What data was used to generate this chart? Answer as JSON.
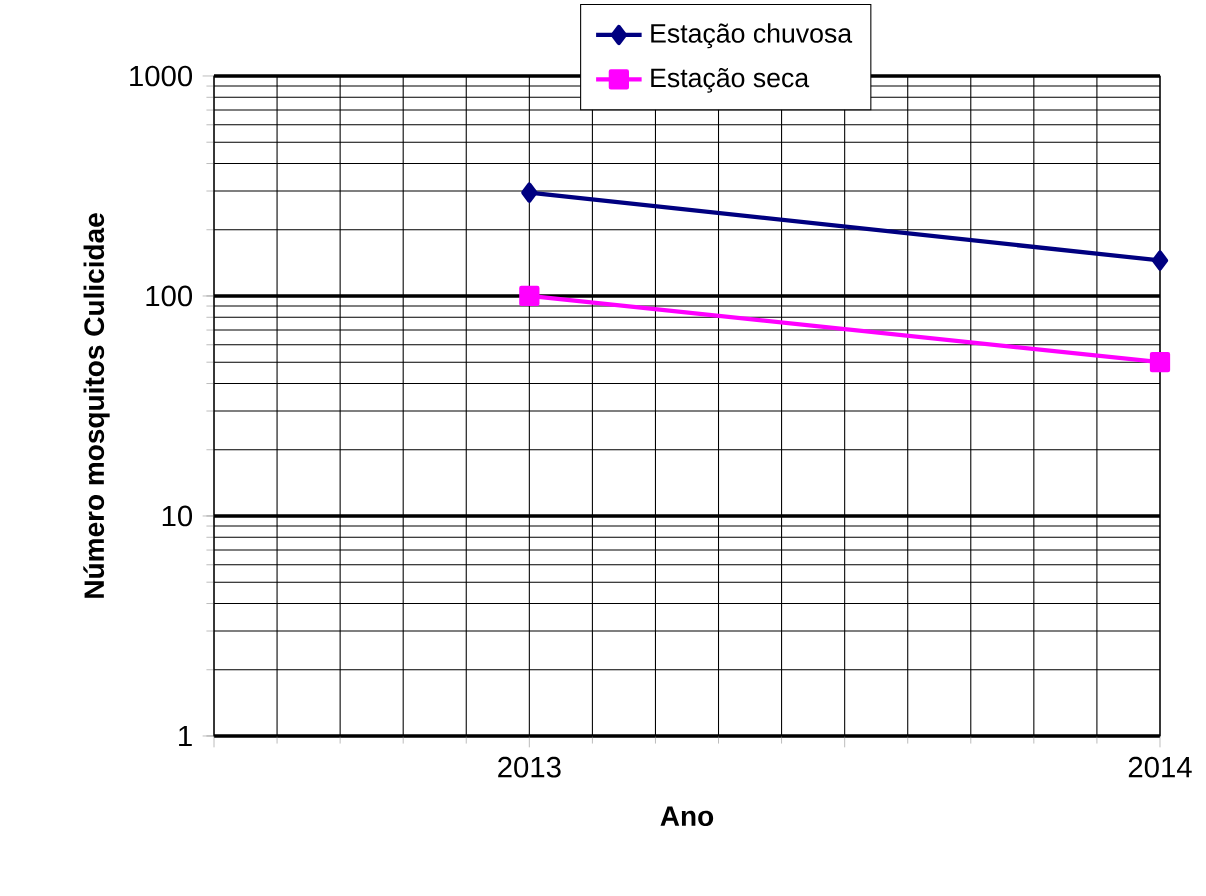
{
  "chart_data": {
    "type": "line",
    "xlabel": "Ano",
    "ylabel": "Número mosquitos Culicidae",
    "x": [
      2013,
      2014
    ],
    "xlim": [
      2012.5,
      2014
    ],
    "xticks": [
      {
        "value": 2012.5,
        "label": null
      },
      2013,
      {
        "value": 2013.5,
        "label": null
      },
      2014
    ],
    "ylim": [
      1,
      1000
    ],
    "yticks": [
      1,
      10,
      100,
      1000
    ],
    "log": "y",
    "grid": true,
    "legend": "top",
    "line_style": "solid",
    "series": [
      {
        "name": "Estação chuvosa",
        "color": "#000080",
        "marker": "diamond",
        "values": [
          295,
          145
        ]
      },
      {
        "name": "Estação seca",
        "color": "#ff00ff",
        "marker": "square",
        "values": [
          100,
          50
        ]
      }
    ]
  }
}
